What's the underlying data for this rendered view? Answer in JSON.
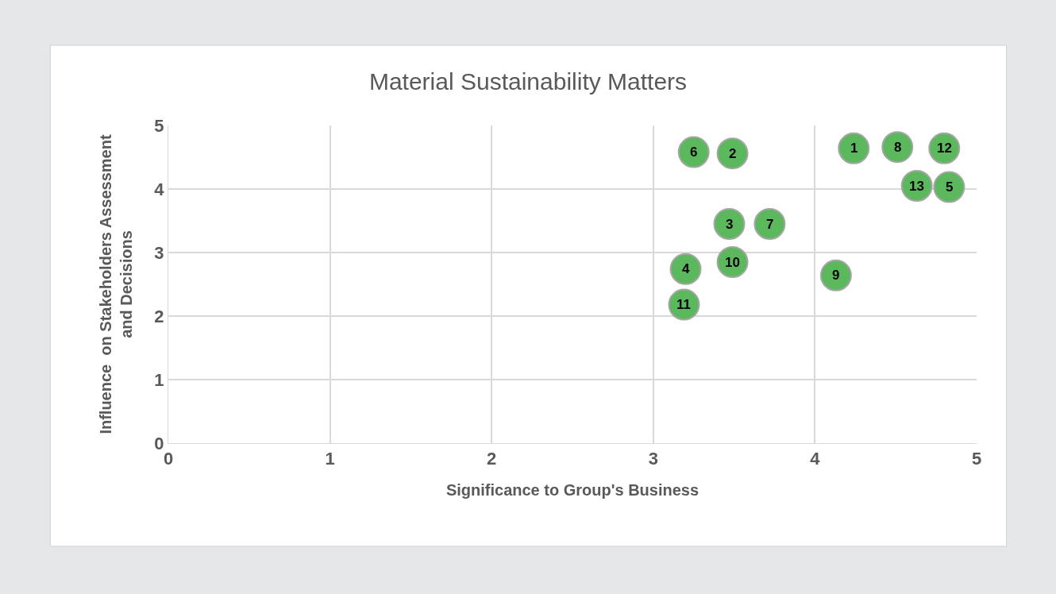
{
  "chart_data": {
    "type": "scatter",
    "title": "Material Sustainability Matters",
    "xlabel": "Significance to Group's Business",
    "ylabel": "Influence  on Stakeholders Assessment\nand Decisions",
    "x": [
      4.24,
      3.49,
      3.47,
      3.2,
      4.83,
      3.25,
      3.72,
      4.51,
      4.13,
      3.49,
      3.19,
      4.8,
      4.63
    ],
    "series": [
      {
        "color": "#5cb85c",
        "values": [
          4.64,
          4.56,
          3.45,
          2.74,
          4.03,
          4.58,
          3.45,
          4.66,
          2.64,
          2.85,
          2.18,
          4.64,
          4.05
        ]
      }
    ],
    "annotations": [
      {
        "text": "1",
        "x": 4.24,
        "y": 4.64
      },
      {
        "text": "2",
        "x": 3.49,
        "y": 4.56
      },
      {
        "text": "3",
        "x": 3.47,
        "y": 3.45
      },
      {
        "text": "4",
        "x": 3.2,
        "y": 2.74
      },
      {
        "text": "5",
        "x": 4.83,
        "y": 4.03
      },
      {
        "text": "6",
        "x": 3.25,
        "y": 4.58
      },
      {
        "text": "7",
        "x": 3.72,
        "y": 3.45
      },
      {
        "text": "8",
        "x": 4.51,
        "y": 4.66
      },
      {
        "text": "9",
        "x": 4.13,
        "y": 2.64
      },
      {
        "text": "10",
        "x": 3.49,
        "y": 2.85
      },
      {
        "text": "11",
        "x": 3.19,
        "y": 2.18
      },
      {
        "text": "12",
        "x": 4.8,
        "y": 4.64
      },
      {
        "text": "13",
        "x": 4.63,
        "y": 4.05
      }
    ],
    "xlim": [
      0,
      5
    ],
    "ylim": [
      0,
      5
    ],
    "xticks": [
      0,
      1,
      2,
      3,
      4,
      5
    ],
    "yticks": [
      0,
      1,
      2,
      3,
      4,
      5
    ],
    "grid": true,
    "marker": "circle"
  }
}
